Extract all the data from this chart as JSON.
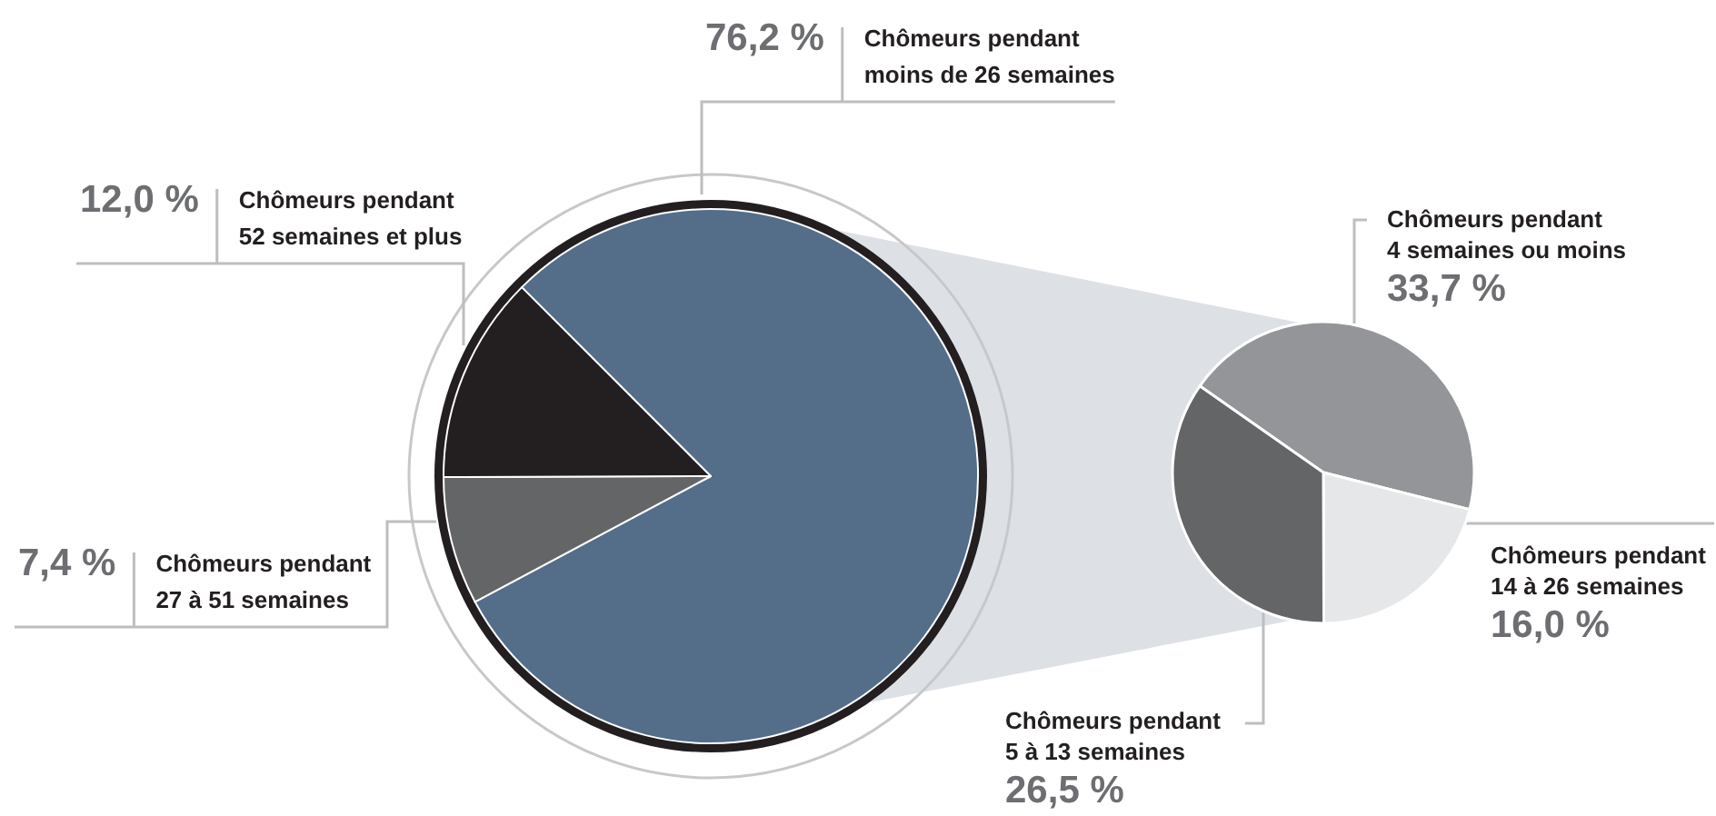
{
  "chart_data": [
    {
      "type": "pie",
      "categories": [
        "Chômeurs pendant moins de 26 semaines",
        "Chômeurs pendant 27 à 51 semaines",
        "Chômeurs pendant 52 semaines et plus"
      ],
      "values": [
        76.2,
        7.4,
        12.0
      ],
      "colors": [
        "#546e8a",
        "#646567",
        "#231f20"
      ],
      "value_labels": [
        "76,2 %",
        "7,4 %",
        "12,0 %"
      ]
    },
    {
      "type": "pie",
      "categories": [
        "Chômeurs pendant 4 semaines ou moins",
        "Chômeurs pendant 14 à 26 semaines",
        "Chômeurs pendant 5 à 13 semaines"
      ],
      "values": [
        33.7,
        16.0,
        26.5
      ],
      "colors": [
        "#939598",
        "#e6e7e8",
        "#646567"
      ],
      "value_labels": [
        "33,7 %",
        "16,0 %",
        "26,5 %"
      ]
    }
  ]
}
